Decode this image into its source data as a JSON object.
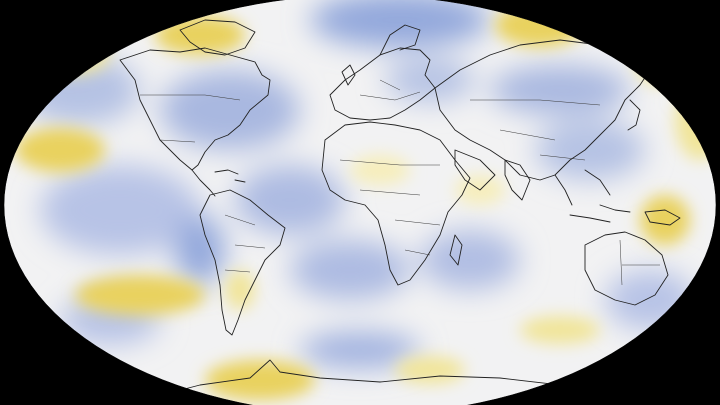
{
  "map": {
    "projection": "robinson",
    "background_color": "#000000",
    "palette": {
      "neutral": "#f2f2f3",
      "cool": "#a9b8e0",
      "cool_strong": "#93a8dc",
      "warm": "#f1e59a",
      "warm_strong": "#e9d25f",
      "coastline": "#222222",
      "border": "#3a3a3a"
    }
  }
}
